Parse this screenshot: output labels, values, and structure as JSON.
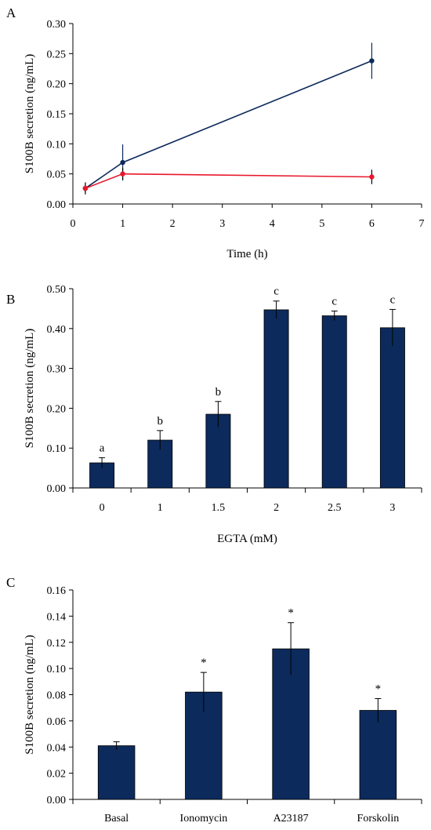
{
  "colors": {
    "bar": "#0c2a5c",
    "line_blue": "#0c2a5c",
    "line_red": "#e8172c"
  },
  "chart_data": [
    {
      "panel": "A",
      "type": "line",
      "xlabel": "Time (h)",
      "ylabel": "S100B secretion  (ng/mL)",
      "xlim": [
        0,
        7
      ],
      "ylim": [
        0,
        0.3
      ],
      "xticks": [
        0,
        1,
        2,
        3,
        4,
        5,
        6,
        7
      ],
      "yticks": [
        0.0,
        0.05,
        0.1,
        0.15,
        0.2,
        0.25,
        0.3
      ],
      "grid": false,
      "series": [
        {
          "color": "#0c2a5c",
          "x": [
            0.25,
            1,
            6
          ],
          "y": [
            0.026,
            0.069,
            0.238
          ],
          "err": [
            0.006,
            0.03,
            0.03
          ]
        },
        {
          "color": "#e8172c",
          "x": [
            0.25,
            1,
            6
          ],
          "y": [
            0.026,
            0.05,
            0.045
          ],
          "err": [
            0.01,
            0.01,
            0.012
          ]
        }
      ]
    },
    {
      "panel": "B",
      "type": "bar",
      "xlabel": "EGTA (mM)",
      "ylabel": "S100B secretion  (ng/mL)",
      "ylim": [
        0,
        0.5
      ],
      "yticks": [
        0.0,
        0.1,
        0.2,
        0.3,
        0.4,
        0.5
      ],
      "categories": [
        "0",
        "1",
        "1.5",
        "2",
        "2.5",
        "3"
      ],
      "values": [
        0.063,
        0.12,
        0.185,
        0.447,
        0.432,
        0.402
      ],
      "err": [
        0.013,
        0.024,
        0.032,
        0.022,
        0.012,
        0.046
      ],
      "annotations": [
        "a",
        "b",
        "b",
        "c",
        "c",
        "c"
      ],
      "grid": false
    },
    {
      "panel": "C",
      "type": "bar",
      "xlabel": "",
      "ylabel": "S100B secretion  (ng/mL)",
      "ylim": [
        0,
        0.16
      ],
      "yticks": [
        0.0,
        0.02,
        0.04,
        0.06,
        0.08,
        0.1,
        0.12,
        0.14,
        0.16
      ],
      "categories": [
        "Basal",
        "Ionomycin",
        "A23187",
        "Forskolin"
      ],
      "values": [
        0.041,
        0.082,
        0.115,
        0.068
      ],
      "err": [
        0.003,
        0.015,
        0.02,
        0.009
      ],
      "annotations": [
        "",
        "*",
        "*",
        "*"
      ],
      "grid": false
    }
  ]
}
